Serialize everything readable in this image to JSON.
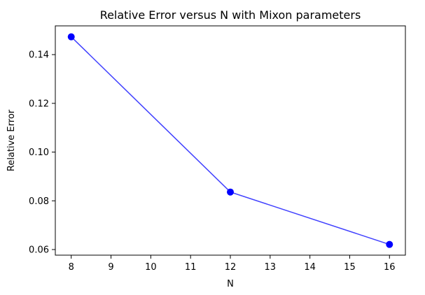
{
  "chart_data": {
    "type": "line",
    "title": "Relative Error versus N with Mixon parameters",
    "xlabel": "N",
    "ylabel": "Relative Error",
    "xlim": [
      7.6,
      16.4
    ],
    "ylim": [
      0.0577,
      0.1518
    ],
    "x_ticks": [
      8,
      9,
      10,
      11,
      12,
      13,
      14,
      15,
      16
    ],
    "x_tick_labels": [
      "8",
      "9",
      "10",
      "11",
      "12",
      "13",
      "14",
      "15",
      "16"
    ],
    "y_ticks": [
      0.06,
      0.08,
      0.1,
      0.12,
      0.14
    ],
    "y_tick_labels": [
      "0.06",
      "0.08",
      "0.10",
      "0.12",
      "0.14"
    ],
    "grid": false,
    "legend": "none",
    "series": [
      {
        "x": [
          8,
          12,
          16
        ],
        "y": [
          0.1473,
          0.0836,
          0.0621
        ],
        "line_color": "#4040ff",
        "marker_color": "#0000ff",
        "marker": "circle"
      }
    ]
  }
}
